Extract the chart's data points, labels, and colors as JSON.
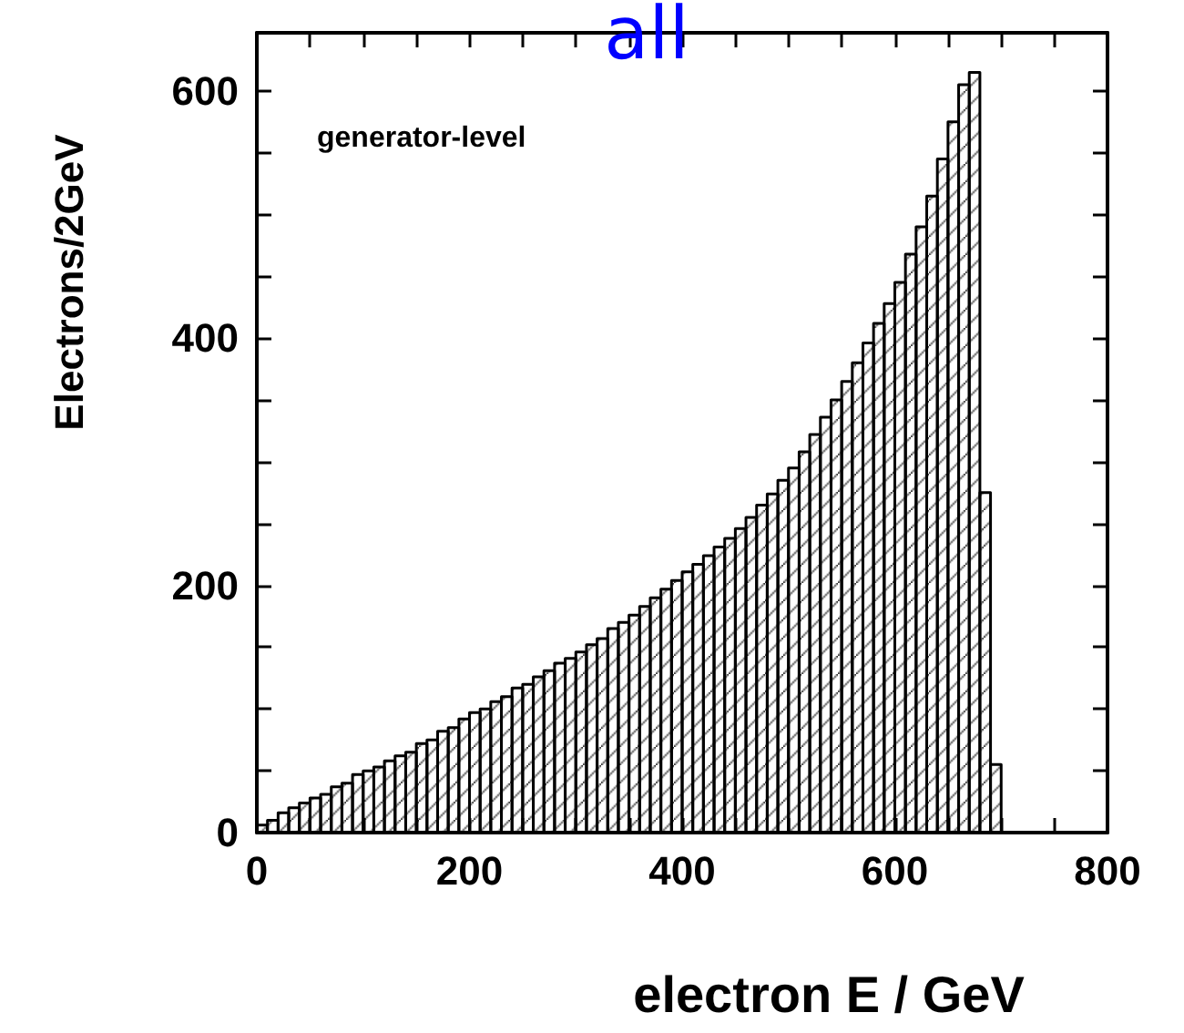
{
  "chart_data": {
    "type": "histogram",
    "title": "all",
    "xlabel": "electron E / GeV",
    "ylabel": "Electrons/2GeV",
    "annotations": [
      "generator-level"
    ],
    "color": "#000000",
    "bins": [
      0,
      10,
      20,
      30,
      40,
      50,
      60,
      70,
      80,
      90,
      100,
      110,
      120,
      130,
      140,
      150,
      160,
      170,
      180,
      190,
      200,
      210,
      220,
      230,
      240,
      250,
      260,
      270,
      280,
      290,
      300,
      310,
      320,
      330,
      340,
      350,
      360,
      370,
      380,
      390,
      400,
      410,
      420,
      430,
      440,
      450,
      460,
      470,
      480,
      490,
      500,
      510,
      520,
      530,
      540,
      550,
      560,
      570,
      580,
      590,
      600,
      610,
      620,
      630,
      640,
      650,
      660,
      670,
      680,
      690,
      700
    ],
    "values": [
      6,
      10,
      16,
      20,
      24,
      28,
      31,
      37,
      40,
      47,
      50,
      53,
      58,
      62,
      65,
      72,
      75,
      82,
      85,
      92,
      97,
      100,
      106,
      110,
      117,
      120,
      126,
      131,
      137,
      141,
      146,
      152,
      157,
      165,
      170,
      176,
      183,
      190,
      197,
      204,
      211,
      217,
      224,
      231,
      238,
      246,
      255,
      265,
      274,
      285,
      295,
      308,
      322,
      336,
      350,
      365,
      380,
      396,
      412,
      428,
      445,
      468,
      490,
      515,
      545,
      575,
      605,
      615,
      275,
      55
    ],
    "xlim": [
      0,
      800
    ],
    "xticks": [
      0,
      {
        "value": 50,
        "label": null
      },
      {
        "value": 100,
        "label": null
      },
      {
        "value": 150,
        "label": null
      },
      200,
      {
        "value": 250,
        "label": null
      },
      {
        "value": 300,
        "label": null
      },
      {
        "value": 350,
        "label": null
      },
      400,
      {
        "value": 450,
        "label": null
      },
      {
        "value": 500,
        "label": null
      },
      {
        "value": 550,
        "label": null
      },
      600,
      {
        "value": 650,
        "label": null
      },
      {
        "value": 700,
        "label": null
      },
      {
        "value": 750,
        "label": null
      },
      800
    ],
    "ylim": [
      0,
      647
    ],
    "yticks": [
      0,
      {
        "value": 50,
        "label": null
      },
      {
        "value": 100,
        "label": null
      },
      {
        "value": 150,
        "label": null
      },
      200,
      {
        "value": 250,
        "label": null
      },
      {
        "value": 300,
        "label": null
      },
      {
        "value": 350,
        "label": null
      },
      400,
      {
        "value": 450,
        "label": null
      },
      {
        "value": 500,
        "label": null
      },
      {
        "value": 550,
        "label": null
      },
      600
    ],
    "grid": false
  }
}
